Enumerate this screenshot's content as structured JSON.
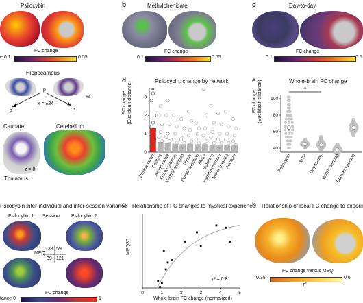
{
  "panels": {
    "a": {
      "title": "Psilocybin",
      "colorbar_label": "FC change",
      "cb_min": "e 0.1",
      "cb_max": "0.55",
      "hippocampus_title": "Hippocampus",
      "hipp_p": "p",
      "hipp_r": "R",
      "hipp_a1": "a",
      "hipp_a2": "a",
      "hipp_x": "x = ±24",
      "caudate": "Caudate",
      "cerebellum": "Cerebellum",
      "thalamus": "Thalamus",
      "z": "z = 8"
    },
    "b": {
      "letter": "b",
      "title": "Methylphenidate",
      "colorbar_label": "FC change",
      "cb_min": "0.1",
      "cb_max": "0.55"
    },
    "c": {
      "letter": "c",
      "title": "Day-to-day",
      "colorbar_label": "FC change",
      "cb_min": "0.1",
      "cb_max": "0.5"
    },
    "d": {
      "letter": "d",
      "title": "Psilocybin: change by network",
      "ylabel1": "FC change",
      "ylabel2": "(Euclidean distance)",
      "sig": "**"
    },
    "e": {
      "letter": "e",
      "title": "Whole-brain FC change",
      "ylabel1": "FC change",
      "ylabel2": "(Euclidean distance)",
      "sig": "**"
    },
    "f": {
      "title": "Psilocybin inter-individual and inter-session variance",
      "p1": "Psilocybin 1",
      "session": "Session",
      "p2": "Psilocybin 2",
      "meq": "MEQ",
      "m11": "138",
      "m12": "59",
      "m21": "39",
      "m22": "121",
      "colorbar_label": "FC change",
      "cb_min": "tance 0",
      "cb_max": "1"
    },
    "g": {
      "letter": "g",
      "title": "Relationship of FC changes to mystical experience",
      "ylabel": "MEQ30",
      "xlabel": "Whole-brain FC change (normalized)",
      "r2": "r² = 0.81"
    },
    "h": {
      "letter": "h",
      "title": "Relationship of local FC change to experience",
      "colorbar_label": "FC change versus MEQ",
      "cb_min": "0.35",
      "cb_max": "0.6",
      "r2": "r²"
    }
  },
  "chart_data": [
    {
      "type": "scatter",
      "panel": "d",
      "title": "Psilocybin: change by network",
      "ylabel": "FC change (Euclidean distance)",
      "ylim": [
        0,
        3.5
      ],
      "yticks": [
        0,
        1,
        2,
        3
      ],
      "categories": [
        "Default mode",
        "Context",
        "Action mode",
        "Fronto-parietal",
        "Ventral attention",
        "Visual",
        "Dorsal attention",
        "Motor",
        "Salience",
        "Parietal memory",
        "Motor (mouth)",
        "Auditory"
      ],
      "bar_values": [
        1.3,
        0.55,
        0.5,
        0.45,
        0.42,
        0.45,
        0.42,
        0.42,
        0.4,
        0.38,
        0.38,
        0.35
      ],
      "points": [
        [
          0.3,
          0.5,
          0.7,
          0.9,
          1.0,
          1.2,
          1.4,
          1.6,
          2.0,
          2.8,
          3.2
        ],
        [
          0.2,
          0.4,
          0.6,
          0.8,
          1.1,
          1.5,
          2.0,
          2.5
        ],
        [
          0.2,
          0.4,
          0.6,
          0.8,
          1.0,
          1.5,
          2.0,
          2.8
        ],
        [
          0.2,
          0.3,
          0.5,
          0.7,
          1.0,
          1.4,
          2.0
        ],
        [
          0.2,
          0.3,
          0.5,
          0.7,
          0.9,
          1.3,
          1.8
        ],
        [
          0.2,
          0.4,
          0.6,
          0.9,
          1.2,
          1.7,
          2.2
        ],
        [
          0.2,
          0.3,
          0.5,
          0.7,
          1.0,
          1.3,
          1.6
        ],
        [
          0.2,
          0.4,
          0.6,
          0.9,
          1.3,
          2.0,
          3.4
        ],
        [
          0.2,
          0.3,
          0.5,
          0.8,
          1.1,
          1.6,
          2.5
        ],
        [
          0.2,
          0.3,
          0.5,
          0.7,
          1.0,
          1.5,
          2.1
        ],
        [
          0.2,
          0.3,
          0.5,
          0.7,
          1.0,
          1.4,
          2.2
        ],
        [
          0.2,
          0.3,
          0.4,
          0.6,
          0.9,
          1.3,
          1.8
        ]
      ],
      "significance": {
        "category": "Default mode",
        "label": "**"
      }
    },
    {
      "type": "scatter",
      "panel": "e",
      "title": "Whole-brain FC change",
      "ylabel": "FC change (Euclidean distance)",
      "ylim": [
        35,
        105
      ],
      "yticks": [
        40,
        60,
        80,
        100
      ],
      "categories": [
        "Psilocybin",
        "MTP",
        "Day-to-day",
        "Within session",
        "Between person"
      ],
      "medians": [
        65,
        45,
        44,
        38,
        65
      ],
      "ranges": [
        [
          40,
          102
        ],
        [
          40,
          50
        ],
        [
          38,
          54
        ],
        [
          30,
          45
        ],
        [
          55,
          75
        ]
      ],
      "significance": {
        "between": [
          "Psilocybin",
          "Day-to-day"
        ],
        "label": "**"
      }
    },
    {
      "type": "scatter",
      "panel": "g",
      "title": "Relationship of FC changes to mystical experience",
      "xlabel": "Whole-brain FC change (normalized)",
      "ylabel": "MEQ30",
      "xlim": [
        0,
        5
      ],
      "ylim": [
        0,
        160
      ],
      "xticks": [
        0,
        1,
        2,
        3,
        4,
        5
      ],
      "x": [
        0.8,
        0.9,
        1.0,
        1.1,
        1.2,
        1.3,
        1.5,
        2.2,
        2.8,
        3.0,
        3.8,
        4.3,
        4.5
      ],
      "y": [
        15,
        2,
        10,
        80,
        40,
        55,
        60,
        100,
        120,
        90,
        135,
        130,
        100
      ],
      "annotation": "r² = 0.81"
    }
  ]
}
